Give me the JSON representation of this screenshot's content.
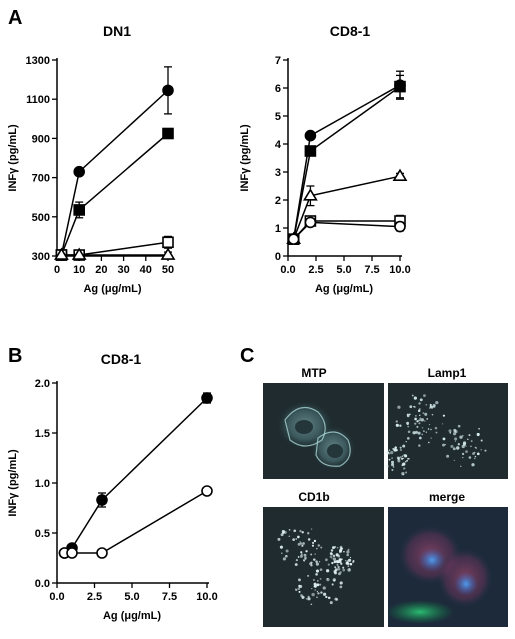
{
  "panels": {
    "A": "A",
    "B": "B",
    "C": "C"
  },
  "chart_data": [
    {
      "type": "line",
      "title": "DN1",
      "xlabel": "Ag (μg/mL)",
      "ylabel": "INFγ (pg/mL)",
      "xlim": [
        0,
        50
      ],
      "ylim": [
        300,
        1300
      ],
      "xticks": [
        0,
        10,
        20,
        30,
        40,
        50
      ],
      "yticks": [
        300,
        500,
        700,
        900,
        1100,
        1300
      ],
      "series": [
        {
          "marker": "filled-circle",
          "points": [
            [
              2,
              305
            ],
            [
              10,
              730
            ],
            [
              50,
              1145
            ]
          ],
          "err": [
            0,
            0,
            120
          ]
        },
        {
          "marker": "filled-square",
          "points": [
            [
              2,
              305
            ],
            [
              10,
              535
            ],
            [
              50,
              925
            ]
          ],
          "err": [
            0,
            40,
            0
          ]
        },
        {
          "marker": "open-square",
          "points": [
            [
              2,
              305
            ],
            [
              10,
              305
            ],
            [
              50,
              370
            ]
          ],
          "err": [
            0,
            0,
            30
          ]
        },
        {
          "marker": "open-triangle",
          "points": [
            [
              2,
              305
            ],
            [
              10,
              305
            ],
            [
              50,
              305
            ]
          ],
          "err": [
            0,
            0,
            15
          ]
        }
      ]
    },
    {
      "type": "line",
      "title": "CD8-1",
      "xlabel": "Ag (μg/mL)",
      "ylabel": "INFγ (pg/mL)",
      "xlim": [
        0,
        10
      ],
      "ylim": [
        0,
        7
      ],
      "xticks": [
        "0.0",
        "2.5",
        "5.0",
        "7.5",
        "10.0"
      ],
      "yticks": [
        0,
        1,
        2,
        3,
        4,
        5,
        6,
        7
      ],
      "series": [
        {
          "marker": "filled-circle",
          "points": [
            [
              0.5,
              0.6
            ],
            [
              2,
              4.3
            ],
            [
              10,
              6.1
            ]
          ],
          "err": [
            0,
            0,
            0.5
          ]
        },
        {
          "marker": "filled-square",
          "points": [
            [
              0.5,
              0.6
            ],
            [
              2,
              3.75
            ],
            [
              10,
              6.05
            ]
          ],
          "err": [
            0,
            0,
            0.4
          ]
        },
        {
          "marker": "open-triangle",
          "points": [
            [
              0.5,
              0.6
            ],
            [
              2,
              2.15
            ],
            [
              10,
              2.85
            ]
          ],
          "err": [
            0,
            0.35,
            0.1
          ]
        },
        {
          "marker": "open-square",
          "points": [
            [
              0.5,
              0.6
            ],
            [
              2,
              1.25
            ],
            [
              10,
              1.25
            ]
          ],
          "err": [
            0,
            0.1,
            0.2
          ]
        },
        {
          "marker": "open-circle",
          "points": [
            [
              0.5,
              0.6
            ],
            [
              2,
              1.2
            ],
            [
              10,
              1.05
            ]
          ],
          "err": [
            0,
            0.1,
            0.15
          ]
        }
      ]
    },
    {
      "type": "line",
      "title": "CD8-1",
      "xlabel": "Ag (μg/mL)",
      "ylabel": "INFγ (pg/mL)",
      "xlim": [
        0,
        10
      ],
      "ylim": [
        0,
        2
      ],
      "xticks": [
        "0.0",
        "2.5",
        "5.0",
        "7.5",
        "10.0"
      ],
      "yticks": [
        "0.0",
        "0.5",
        "1.0",
        "1.5",
        "2.0"
      ],
      "series": [
        {
          "marker": "filled-circle",
          "points": [
            [
              0.5,
              0.3
            ],
            [
              1,
              0.35
            ],
            [
              3,
              0.83
            ],
            [
              10,
              1.85
            ]
          ],
          "err": [
            0,
            0,
            0.07,
            0.05
          ]
        },
        {
          "marker": "open-circle",
          "points": [
            [
              0.5,
              0.3
            ],
            [
              1,
              0.3
            ],
            [
              3,
              0.3
            ],
            [
              10,
              0.92
            ]
          ],
          "err": [
            0,
            0,
            0,
            0.02
          ]
        }
      ]
    }
  ],
  "micrographs": [
    {
      "label": "MTP",
      "name": "mtp-micrograph"
    },
    {
      "label": "Lamp1",
      "name": "lamp1-micrograph"
    },
    {
      "label": "CD1b",
      "name": "cd1b-micrograph"
    },
    {
      "label": "merge",
      "name": "merge-micrograph"
    }
  ]
}
